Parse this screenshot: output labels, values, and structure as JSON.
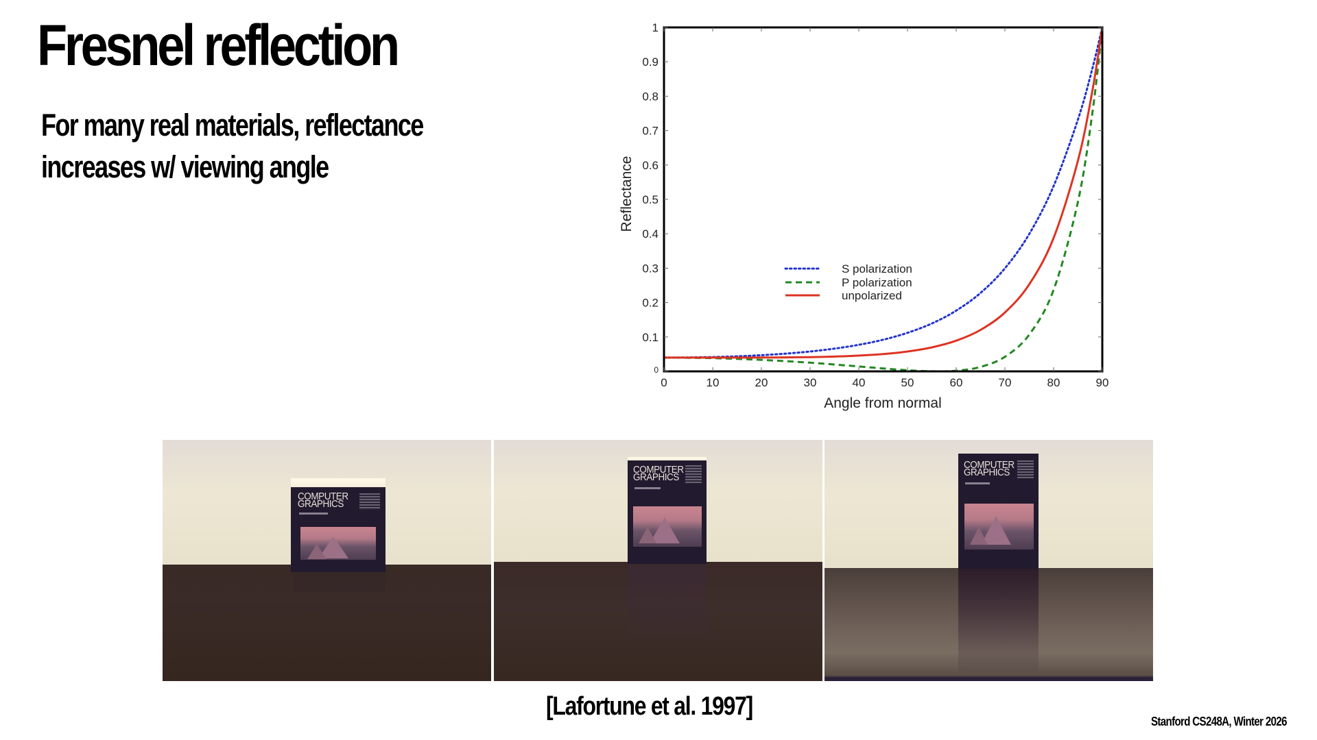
{
  "slide": {
    "title": "Fresnel reflection",
    "subtitle_lines": [
      "For many real materials, reflectance",
      "increases w/ viewing angle"
    ],
    "caption": "[Lafortune et al. 1997]",
    "footer": "Stanford CS248A, Winter 2026"
  },
  "photos": [
    {
      "book_title_line1": "COMPUTER",
      "book_title_line2": "GRAPHICS",
      "description": "Book on wooden table, near-normal view, faint reflection"
    },
    {
      "book_title_line1": "COMPUTER",
      "book_title_line2": "GRAPHICS",
      "description": "Book on wooden table, moderate grazing view, visible reflection"
    },
    {
      "book_title_line1": "COMPUTER",
      "book_title_line2": "GRAPHICS",
      "description": "Book on wooden table, grazing view, strong reflection"
    }
  ],
  "chart_data": {
    "type": "line",
    "title": "",
    "xlabel": "Angle from normal",
    "ylabel": "Reflectance",
    "xlim": [
      0,
      90
    ],
    "ylim": [
      0,
      1
    ],
    "xticks": [
      0,
      10,
      20,
      30,
      40,
      50,
      60,
      70,
      80,
      90
    ],
    "yticks": [
      0,
      0.1,
      0.2,
      0.3,
      0.4,
      0.5,
      0.6,
      0.7,
      0.8,
      0.9,
      1
    ],
    "ytick_labels": [
      "0",
      "0.1",
      "0.2",
      "0.3",
      "0.4",
      "0.5",
      "0.6",
      "0.7",
      "0.8",
      "0.9",
      "1"
    ],
    "grid": false,
    "legend_position": "center-left inside plot",
    "x": [
      0,
      5,
      10,
      15,
      20,
      25,
      30,
      35,
      40,
      45,
      50,
      55,
      60,
      65,
      70,
      75,
      80,
      85,
      88,
      90
    ],
    "series": [
      {
        "name": "S polarization",
        "style": "dotted",
        "color": "#2233cc",
        "values": [
          0.04,
          0.0405,
          0.0417,
          0.0438,
          0.0471,
          0.0516,
          0.0578,
          0.0661,
          0.0772,
          0.092,
          0.1121,
          0.1393,
          0.1766,
          0.2281,
          0.2996,
          0.3994,
          0.5387,
          0.7322,
          0.8826,
          1.0
        ]
      },
      {
        "name": "P polarization",
        "style": "dashed",
        "color": "#228822",
        "values": [
          0.04,
          0.0395,
          0.0384,
          0.0363,
          0.0334,
          0.0297,
          0.0252,
          0.02,
          0.0143,
          0.0085,
          0.0033,
          0.0002,
          0.0018,
          0.013,
          0.0425,
          0.1068,
          0.2369,
          0.4931,
          0.755,
          1.0
        ]
      },
      {
        "name": "unpolarized",
        "style": "solid",
        "color": "#dd3322",
        "values": [
          0.04,
          0.04,
          0.0401,
          0.0401,
          0.0403,
          0.0407,
          0.0415,
          0.0431,
          0.0458,
          0.0503,
          0.0577,
          0.0698,
          0.0892,
          0.1206,
          0.1711,
          0.2531,
          0.3878,
          0.6127,
          0.8188,
          1.0
        ]
      }
    ]
  }
}
